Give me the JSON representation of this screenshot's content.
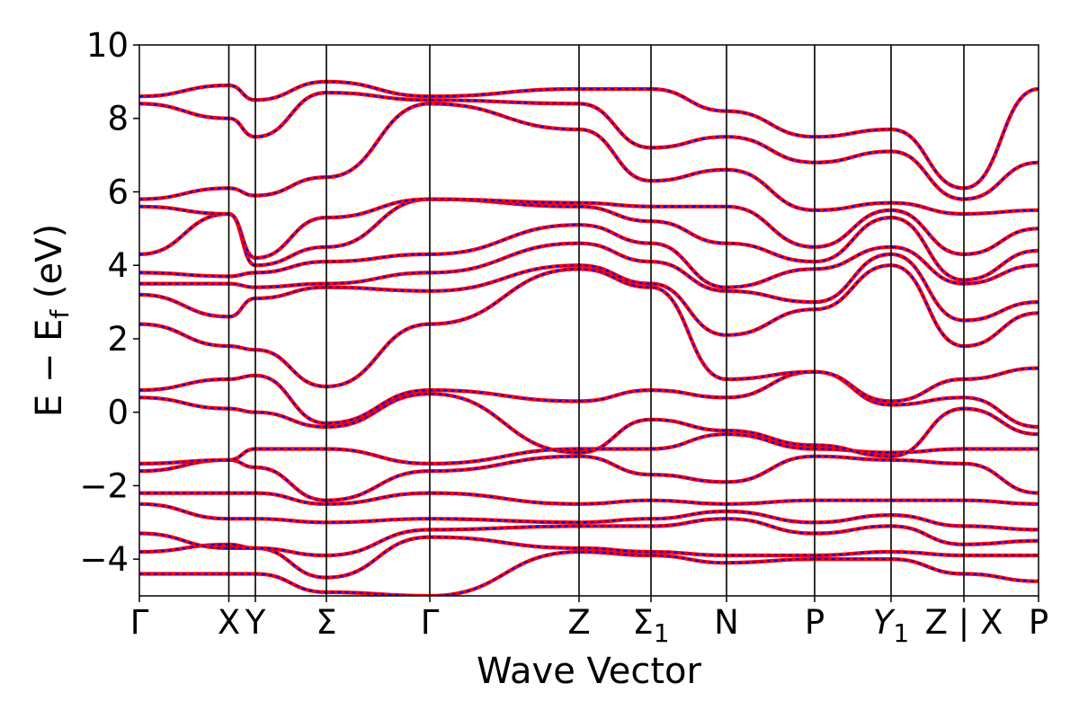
{
  "chart_data": {
    "type": "line",
    "xlabel": "Wave Vector",
    "ylabel_parts": {
      "main": "E − E",
      "sub": "f",
      "unit": " (eV)"
    },
    "ylim": [
      -5,
      10
    ],
    "yticks": [
      -4,
      -2,
      0,
      2,
      4,
      6,
      8,
      10
    ],
    "ytick_labels": [
      "−4",
      "−2",
      "0",
      "2",
      "4",
      "6",
      "8",
      "10"
    ],
    "grid": false,
    "legend": "none",
    "colors": {
      "band_solid": "#ff0000",
      "band_dashed": "#0000ff",
      "divider": "#000000"
    },
    "kpath": [
      {
        "label": "Γ",
        "x": 0.0
      },
      {
        "label": "X",
        "x": 0.0995
      },
      {
        "label": "Y",
        "x": 0.129
      },
      {
        "label": "Σ",
        "x": 0.208
      },
      {
        "label": "Γ",
        "x": 0.323
      },
      {
        "label": "Z",
        "x": 0.489
      },
      {
        "label": "Σ",
        "sub": "1",
        "x": 0.569
      },
      {
        "label": "N",
        "x": 0.653
      },
      {
        "label": "P",
        "x": 0.751
      },
      {
        "label": "Y",
        "sub": "1",
        "italic": true,
        "x": 0.836
      },
      {
        "label": "Z | X",
        "x": 0.917
      },
      {
        "label": "P",
        "x": 1.0
      }
    ],
    "bands_at_kpoints": [
      [
        -4.4,
        -4.4,
        -4.4,
        -4.9,
        -5.0,
        -3.8,
        -3.9,
        -4.1,
        -4.0,
        -4.0,
        -4.4,
        -4.6
      ],
      [
        -3.8,
        -3.6,
        -3.7,
        -4.5,
        -3.4,
        -3.7,
        -3.8,
        -3.9,
        -3.9,
        -3.8,
        -3.9,
        -3.9
      ],
      [
        -3.3,
        -3.7,
        -3.7,
        -3.9,
        -3.2,
        -3.1,
        -3.1,
        -2.9,
        -3.3,
        -3.1,
        -3.6,
        -3.5
      ],
      [
        -2.5,
        -2.9,
        -2.9,
        -3.0,
        -2.9,
        -3.0,
        -2.9,
        -2.7,
        -3.0,
        -2.8,
        -3.1,
        -3.2
      ],
      [
        -2.2,
        -2.2,
        -2.2,
        -2.5,
        -2.2,
        -2.5,
        -2.4,
        -2.5,
        -2.4,
        -2.4,
        -2.4,
        -2.5
      ],
      [
        -1.6,
        -1.3,
        -1.5,
        -2.4,
        -1.6,
        -1.2,
        -1.7,
        -1.9,
        -1.2,
        -1.3,
        -1.4,
        -2.2
      ],
      [
        -1.4,
        -1.3,
        -1.0,
        -1.0,
        -1.4,
        -1.0,
        -1.0,
        -0.6,
        -1.0,
        -1.1,
        -1.0,
        -1.0
      ],
      [
        0.4,
        0.1,
        0.0,
        -0.4,
        0.5,
        -1.1,
        -0.2,
        -0.5,
        -0.9,
        -1.2,
        0.1,
        -0.6
      ],
      [
        0.6,
        0.9,
        1.0,
        -0.3,
        0.6,
        0.3,
        0.6,
        0.4,
        1.1,
        0.2,
        0.4,
        -0.4
      ],
      [
        2.4,
        1.8,
        1.7,
        0.7,
        2.4,
        3.9,
        3.4,
        0.9,
        1.1,
        0.3,
        0.9,
        1.2
      ],
      [
        3.2,
        2.6,
        3.1,
        3.4,
        3.3,
        4.0,
        3.5,
        2.1,
        2.8,
        4.0,
        1.8,
        2.7
      ],
      [
        3.5,
        3.5,
        3.4,
        3.5,
        3.8,
        4.6,
        4.1,
        3.3,
        3.0,
        4.3,
        2.5,
        3.0
      ],
      [
        3.8,
        3.7,
        3.8,
        4.1,
        4.3,
        5.1,
        4.6,
        3.4,
        3.9,
        4.5,
        3.5,
        4.0
      ],
      [
        4.3,
        5.4,
        4.0,
        4.5,
        5.8,
        5.6,
        5.2,
        4.6,
        4.1,
        5.3,
        3.6,
        4.4
      ],
      [
        5.6,
        5.4,
        4.2,
        5.3,
        5.8,
        5.7,
        5.6,
        5.6,
        4.5,
        5.5,
        4.3,
        5.0
      ],
      [
        5.8,
        6.1,
        5.9,
        6.4,
        8.4,
        7.7,
        6.3,
        6.6,
        5.5,
        5.7,
        5.4,
        5.5
      ],
      [
        8.4,
        8.0,
        7.5,
        8.7,
        8.5,
        8.4,
        7.2,
        7.5,
        6.8,
        7.1,
        5.8,
        6.8
      ],
      [
        8.6,
        8.9,
        8.5,
        9.0,
        8.6,
        8.8,
        8.8,
        8.2,
        7.5,
        7.7,
        6.1,
        8.8
      ]
    ]
  }
}
